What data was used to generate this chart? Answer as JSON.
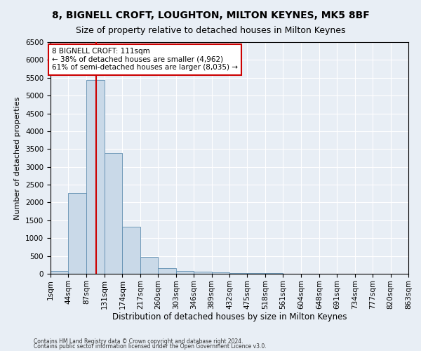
{
  "title": "8, BIGNELL CROFT, LOUGHTON, MILTON KEYNES, MK5 8BF",
  "subtitle": "Size of property relative to detached houses in Milton Keynes",
  "xlabel": "Distribution of detached houses by size in Milton Keynes",
  "ylabel": "Number of detached properties",
  "footer_line1": "Contains HM Land Registry data © Crown copyright and database right 2024.",
  "footer_line2": "Contains public sector information licensed under the Open Government Licence v3.0.",
  "annotation_line1": "8 BIGNELL CROFT: 111sqm",
  "annotation_line2": "← 38% of detached houses are smaller (4,962)",
  "annotation_line3": "61% of semi-detached houses are larger (8,035) →",
  "bar_color": "#c9d9e8",
  "bar_edge_color": "#5f8db0",
  "vline_color": "#cc0000",
  "vline_x": 111,
  "bin_edges": [
    1,
    44,
    87,
    131,
    174,
    217,
    260,
    303,
    346,
    389,
    432,
    475,
    518,
    561,
    604,
    648,
    691,
    734,
    777,
    820,
    863
  ],
  "bin_labels": [
    "1sqm",
    "44sqm",
    "87sqm",
    "131sqm",
    "174sqm",
    "217sqm",
    "260sqm",
    "303sqm",
    "346sqm",
    "389sqm",
    "432sqm",
    "475sqm",
    "518sqm",
    "561sqm",
    "604sqm",
    "648sqm",
    "691sqm",
    "734sqm",
    "777sqm",
    "820sqm",
    "863sqm"
  ],
  "bar_heights": [
    70,
    2270,
    5430,
    3380,
    1310,
    480,
    165,
    80,
    50,
    35,
    20,
    15,
    10,
    5,
    3,
    2,
    1,
    1,
    0,
    0
  ],
  "ylim": [
    0,
    6500
  ],
  "yticks": [
    0,
    500,
    1000,
    1500,
    2000,
    2500,
    3000,
    3500,
    4000,
    4500,
    5000,
    5500,
    6000,
    6500
  ],
  "background_color": "#e8eef5",
  "grid_color": "#ffffff",
  "title_fontsize": 10,
  "subtitle_fontsize": 9,
  "ylabel_fontsize": 8,
  "xlabel_fontsize": 8.5,
  "tick_fontsize": 7.5,
  "annotation_box_color": "#ffffff",
  "annotation_box_edge": "#cc0000",
  "annotation_fontsize": 7.5,
  "footer_fontsize": 5.5
}
